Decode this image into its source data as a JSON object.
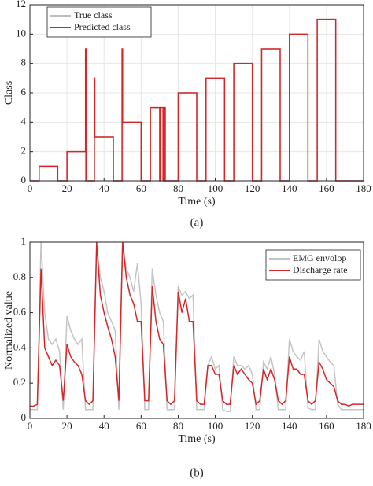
{
  "chart_data": [
    {
      "type": "line",
      "caption": "(a)",
      "xlabel": "Time (s)",
      "ylabel": "Class",
      "xlim": [
        0,
        180
      ],
      "ylim": [
        0,
        12
      ],
      "xticks": [
        0,
        20,
        40,
        60,
        80,
        100,
        120,
        140,
        160,
        180
      ],
      "yticks": [
        0,
        2,
        4,
        6,
        8,
        10,
        12
      ],
      "grid": true,
      "legend": "upper left",
      "series": [
        {
          "name": "True class",
          "color": "#bdbdbd",
          "x": [
            0,
            5,
            5,
            15,
            15,
            20,
            20,
            30,
            30,
            35,
            35,
            45,
            45,
            50,
            50,
            60,
            60,
            65,
            65,
            73,
            73,
            80,
            80,
            90,
            90,
            95,
            95,
            105,
            105,
            110,
            110,
            120,
            120,
            125,
            125,
            135,
            135,
            140,
            140,
            150,
            150,
            155,
            155,
            165,
            165,
            180
          ],
          "values": [
            0,
            0,
            1,
            1,
            0,
            0,
            2,
            2,
            0,
            0,
            3,
            3,
            0,
            0,
            4,
            4,
            0,
            0,
            5,
            5,
            0,
            0,
            6,
            6,
            0,
            0,
            7,
            7,
            0,
            0,
            8,
            8,
            0,
            0,
            9,
            9,
            0,
            0,
            10,
            10,
            0,
            0,
            11,
            11,
            0,
            0
          ]
        },
        {
          "name": "Predicted class",
          "color": "#d62728",
          "x": [
            0,
            5,
            5,
            15,
            15,
            20,
            20,
            30,
            30,
            30.3,
            30.3,
            34.7,
            34.7,
            35,
            35,
            45,
            45,
            49.7,
            49.7,
            50,
            50,
            60,
            60,
            65,
            65,
            70,
            70,
            70.6,
            70.6,
            71.8,
            71.8,
            72.4,
            72.4,
            73,
            73,
            80,
            80,
            90,
            90,
            95,
            95,
            105,
            105,
            110,
            110,
            120,
            120,
            125,
            125,
            135,
            135,
            140,
            140,
            150,
            150,
            155,
            155,
            165,
            165,
            180
          ],
          "values": [
            0,
            0,
            1,
            1,
            0,
            0,
            2,
            2,
            9,
            9,
            0,
            0,
            7,
            7,
            3,
            3,
            0,
            0,
            9,
            9,
            4,
            4,
            0,
            0,
            5,
            5,
            0,
            0,
            5,
            5,
            0,
            0,
            5,
            5,
            0,
            0,
            6,
            6,
            0,
            0,
            7,
            7,
            0,
            0,
            8,
            8,
            0,
            0,
            9,
            9,
            0,
            0,
            10,
            10,
            0,
            0,
            11,
            11,
            0,
            0
          ]
        }
      ]
    },
    {
      "type": "line",
      "caption": "(b)",
      "xlabel": "Time (s)",
      "ylabel": "Normalized value",
      "xlim": [
        0,
        180
      ],
      "ylim": [
        0,
        1
      ],
      "xticks": [
        0,
        20,
        40,
        60,
        80,
        100,
        120,
        140,
        160,
        180
      ],
      "yticks": [
        0,
        0.2,
        0.4,
        0.6,
        0.8,
        1
      ],
      "grid": false,
      "legend": "upper right",
      "series": [
        {
          "name": "EMG envolop",
          "color": "#c4c4c4",
          "x": [
            0,
            2,
            4,
            6,
            8,
            10,
            12,
            14,
            16,
            18,
            20,
            22,
            24,
            26,
            28,
            30,
            32,
            34,
            36,
            38,
            40,
            42,
            44,
            46,
            48,
            50,
            52,
            54,
            56,
            58,
            60,
            62,
            64,
            66,
            68,
            70,
            72,
            74,
            76,
            78,
            80,
            82,
            84,
            86,
            88,
            90,
            92,
            94,
            96,
            98,
            100,
            102,
            104,
            106,
            108,
            110,
            112,
            114,
            116,
            118,
            120,
            122,
            124,
            126,
            128,
            130,
            132,
            134,
            136,
            138,
            140,
            142,
            144,
            146,
            148,
            150,
            152,
            154,
            156,
            158,
            160,
            162,
            164,
            166,
            168,
            170,
            172,
            174,
            176,
            178,
            180
          ],
          "values": [
            0.05,
            0.05,
            0.05,
            1.0,
            0.6,
            0.45,
            0.42,
            0.45,
            0.38,
            0.05,
            0.58,
            0.5,
            0.45,
            0.42,
            0.45,
            0.05,
            0.05,
            0.05,
            0.98,
            0.8,
            0.72,
            0.6,
            0.55,
            0.5,
            0.05,
            1.0,
            0.85,
            0.8,
            0.72,
            0.88,
            0.65,
            0.05,
            0.05,
            0.85,
            0.7,
            0.6,
            0.55,
            0.05,
            0.05,
            0.05,
            0.75,
            0.7,
            0.72,
            0.68,
            0.7,
            0.05,
            0.05,
            0.05,
            0.3,
            0.35,
            0.28,
            0.3,
            0.05,
            0.04,
            0.04,
            0.35,
            0.3,
            0.3,
            0.28,
            0.3,
            0.25,
            0.05,
            0.05,
            0.32,
            0.28,
            0.35,
            0.25,
            0.05,
            0.05,
            0.05,
            0.45,
            0.38,
            0.35,
            0.33,
            0.38,
            0.06,
            0.05,
            0.05,
            0.45,
            0.38,
            0.35,
            0.32,
            0.3,
            0.08,
            0.05,
            0.05,
            0.05,
            0.05,
            0.05,
            0.05,
            0.05
          ]
        },
        {
          "name": "Discharge rate",
          "color": "#d62728",
          "x": [
            0,
            2,
            4,
            6,
            8,
            10,
            12,
            14,
            16,
            18,
            20,
            22,
            24,
            26,
            28,
            30,
            32,
            34,
            36,
            38,
            40,
            42,
            44,
            46,
            48,
            50,
            52,
            54,
            56,
            58,
            60,
            62,
            64,
            66,
            68,
            70,
            72,
            74,
            76,
            78,
            80,
            82,
            84,
            86,
            88,
            90,
            92,
            94,
            96,
            98,
            100,
            102,
            104,
            106,
            108,
            110,
            112,
            114,
            116,
            118,
            120,
            122,
            124,
            126,
            128,
            130,
            132,
            134,
            136,
            138,
            140,
            142,
            144,
            146,
            148,
            150,
            152,
            154,
            156,
            158,
            160,
            162,
            164,
            166,
            168,
            170,
            172,
            174,
            176,
            178,
            180
          ],
          "values": [
            0.07,
            0.07,
            0.08,
            0.85,
            0.4,
            0.35,
            0.3,
            0.33,
            0.3,
            0.1,
            0.42,
            0.35,
            0.32,
            0.3,
            0.25,
            0.1,
            0.08,
            0.1,
            1.0,
            0.7,
            0.6,
            0.52,
            0.45,
            0.35,
            0.1,
            1.0,
            0.8,
            0.7,
            0.65,
            0.55,
            0.55,
            0.1,
            0.1,
            0.75,
            0.55,
            0.45,
            0.42,
            0.1,
            0.08,
            0.1,
            0.72,
            0.6,
            0.68,
            0.55,
            0.55,
            0.1,
            0.08,
            0.08,
            0.3,
            0.3,
            0.25,
            0.25,
            0.1,
            0.08,
            0.08,
            0.3,
            0.25,
            0.28,
            0.25,
            0.22,
            0.2,
            0.08,
            0.1,
            0.28,
            0.22,
            0.28,
            0.22,
            0.1,
            0.08,
            0.1,
            0.35,
            0.28,
            0.28,
            0.25,
            0.25,
            0.1,
            0.08,
            0.1,
            0.32,
            0.28,
            0.22,
            0.2,
            0.18,
            0.1,
            0.08,
            0.08,
            0.07,
            0.08,
            0.08,
            0.08,
            0.08
          ]
        }
      ]
    }
  ]
}
